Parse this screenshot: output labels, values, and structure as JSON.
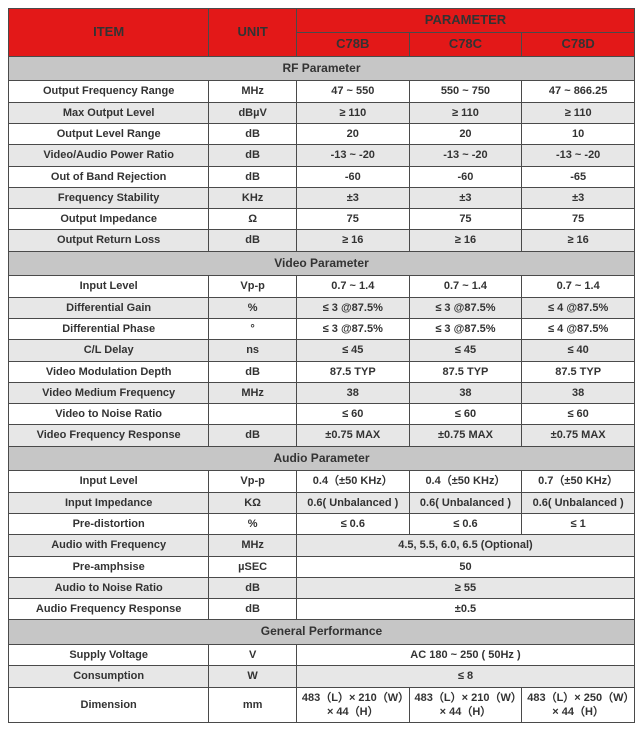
{
  "header": {
    "item": "ITEM",
    "unit": "UNIT",
    "parameter": "PARAMETER",
    "models": [
      "C78B",
      "C78C",
      "C78D"
    ]
  },
  "sections": {
    "rf": {
      "title": "RF Parameter",
      "rows": [
        {
          "item": "Output Frequency Range",
          "unit": "MHz",
          "c0": "47 ~ 550",
          "c1": "550 ~ 750",
          "c2": "47 ~ 866.25",
          "alt": false
        },
        {
          "item": "Max Output Level",
          "unit": "dBµV",
          "c0": "≥ 110",
          "c1": "≥ 110",
          "c2": "≥ 110",
          "alt": true
        },
        {
          "item": "Output Level Range",
          "unit": "dB",
          "c0": "20",
          "c1": "20",
          "c2": "10",
          "alt": false
        },
        {
          "item": "Video/Audio Power Ratio",
          "unit": "dB",
          "c0": "-13 ~ -20",
          "c1": "-13 ~ -20",
          "c2": "-13 ~ -20",
          "alt": true
        },
        {
          "item": "Out of Band Rejection",
          "unit": "dB",
          "c0": "-60",
          "c1": "-60",
          "c2": "-65",
          "alt": false
        },
        {
          "item": "Frequency Stability",
          "unit": "KHz",
          "c0": "±3",
          "c1": "±3",
          "c2": "±3",
          "alt": true
        },
        {
          "item": "Output Impedance",
          "unit": "Ω",
          "c0": "75",
          "c1": "75",
          "c2": "75",
          "alt": false
        },
        {
          "item": "Output Return Loss",
          "unit": "dB",
          "c0": "≥ 16",
          "c1": "≥ 16",
          "c2": "≥ 16",
          "alt": true
        }
      ]
    },
    "video": {
      "title": "Video Parameter",
      "rows": [
        {
          "item": "Input Level",
          "unit": "Vp-p",
          "c0": "0.7 ~ 1.4",
          "c1": "0.7 ~ 1.4",
          "c2": "0.7 ~ 1.4",
          "alt": false
        },
        {
          "item": "Differential Gain",
          "unit": "%",
          "c0": "≤ 3 @87.5%",
          "c1": "≤ 3 @87.5%",
          "c2": "≤ 4 @87.5%",
          "alt": true
        },
        {
          "item": "Differential Phase",
          "unit": "°",
          "c0": "≤ 3 @87.5%",
          "c1": "≤ 3 @87.5%",
          "c2": "≤ 4 @87.5%",
          "alt": false
        },
        {
          "item": "C/L Delay",
          "unit": "ns",
          "c0": "≤ 45",
          "c1": "≤ 45",
          "c2": "≤ 40",
          "alt": true
        },
        {
          "item": "Video Modulation Depth",
          "unit": "dB",
          "c0": "87.5 TYP",
          "c1": "87.5 TYP",
          "c2": "87.5 TYP",
          "alt": false
        },
        {
          "item": "Video Medium Frequency",
          "unit": "MHz",
          "c0": "38",
          "c1": "38",
          "c2": "38",
          "alt": true
        },
        {
          "item": "Video to Noise Ratio",
          "unit": "",
          "c0": "≤ 60",
          "c1": "≤ 60",
          "c2": "≤ 60",
          "alt": false
        },
        {
          "item": "Video Frequency Response",
          "unit": "dB",
          "c0": "±0.75 MAX",
          "c1": "±0.75 MAX",
          "c2": "±0.75 MAX",
          "alt": true
        }
      ]
    },
    "audio": {
      "title": "Audio Parameter",
      "rows": [
        {
          "item": "Input Level",
          "unit": "Vp-p",
          "c0": "0.4（±50 KHz）",
          "c1": "0.4（±50 KHz）",
          "c2": "0.7（±50 KHz）",
          "alt": false,
          "span": false
        },
        {
          "item": "Input  Impedance",
          "unit": "KΩ",
          "c0": "0.6( Unbalanced )",
          "c1": "0.6( Unbalanced )",
          "c2": "0.6( Unbalanced )",
          "alt": true,
          "span": false
        },
        {
          "item": "Pre-distortion",
          "unit": "%",
          "c0": "≤ 0.6",
          "c1": "≤ 0.6",
          "c2": "≤ 1",
          "alt": false,
          "span": false
        },
        {
          "item": "Audio with Frequency",
          "unit": "MHz",
          "merged": "4.5, 5.5, 6.0, 6.5 (Optional)",
          "alt": true,
          "span": true
        },
        {
          "item": "Pre-amphsise",
          "unit": "µSEC",
          "merged": "50",
          "alt": false,
          "span": true
        },
        {
          "item": "Audio to Noise Ratio",
          "unit": "dB",
          "merged": "≥ 55",
          "alt": true,
          "span": true
        },
        {
          "item": "Audio Frequency Response",
          "unit": "dB",
          "merged": "±0.5",
          "alt": false,
          "span": true
        }
      ]
    },
    "general": {
      "title": "General Performance",
      "rows": [
        {
          "item": "Supply Voltage",
          "unit": "V",
          "merged": "AC 180 ~ 250 ( 50Hz )",
          "alt": false,
          "span": true
        },
        {
          "item": "Consumption",
          "unit": "W",
          "merged": "≤ 8",
          "alt": true,
          "span": true
        },
        {
          "item": "Dimension",
          "unit": "mm",
          "c0": "483（L）× 210（W）× 44（H）",
          "c1": "483（L）× 210（W）× 44（H）",
          "c2": "483（L）× 250（W）× 44（H）",
          "alt": false,
          "span": false
        }
      ]
    }
  },
  "styles": {
    "header_bg": "#e31818",
    "section_bg": "#c6c6c6",
    "row_light_bg": "#ffffff",
    "row_alt_bg": "#e7e7e7",
    "border_color": "#4a4a4a",
    "text_color": "#333333",
    "base_fontsize": 11,
    "header_fontsize": 13,
    "section_fontsize": 12
  }
}
